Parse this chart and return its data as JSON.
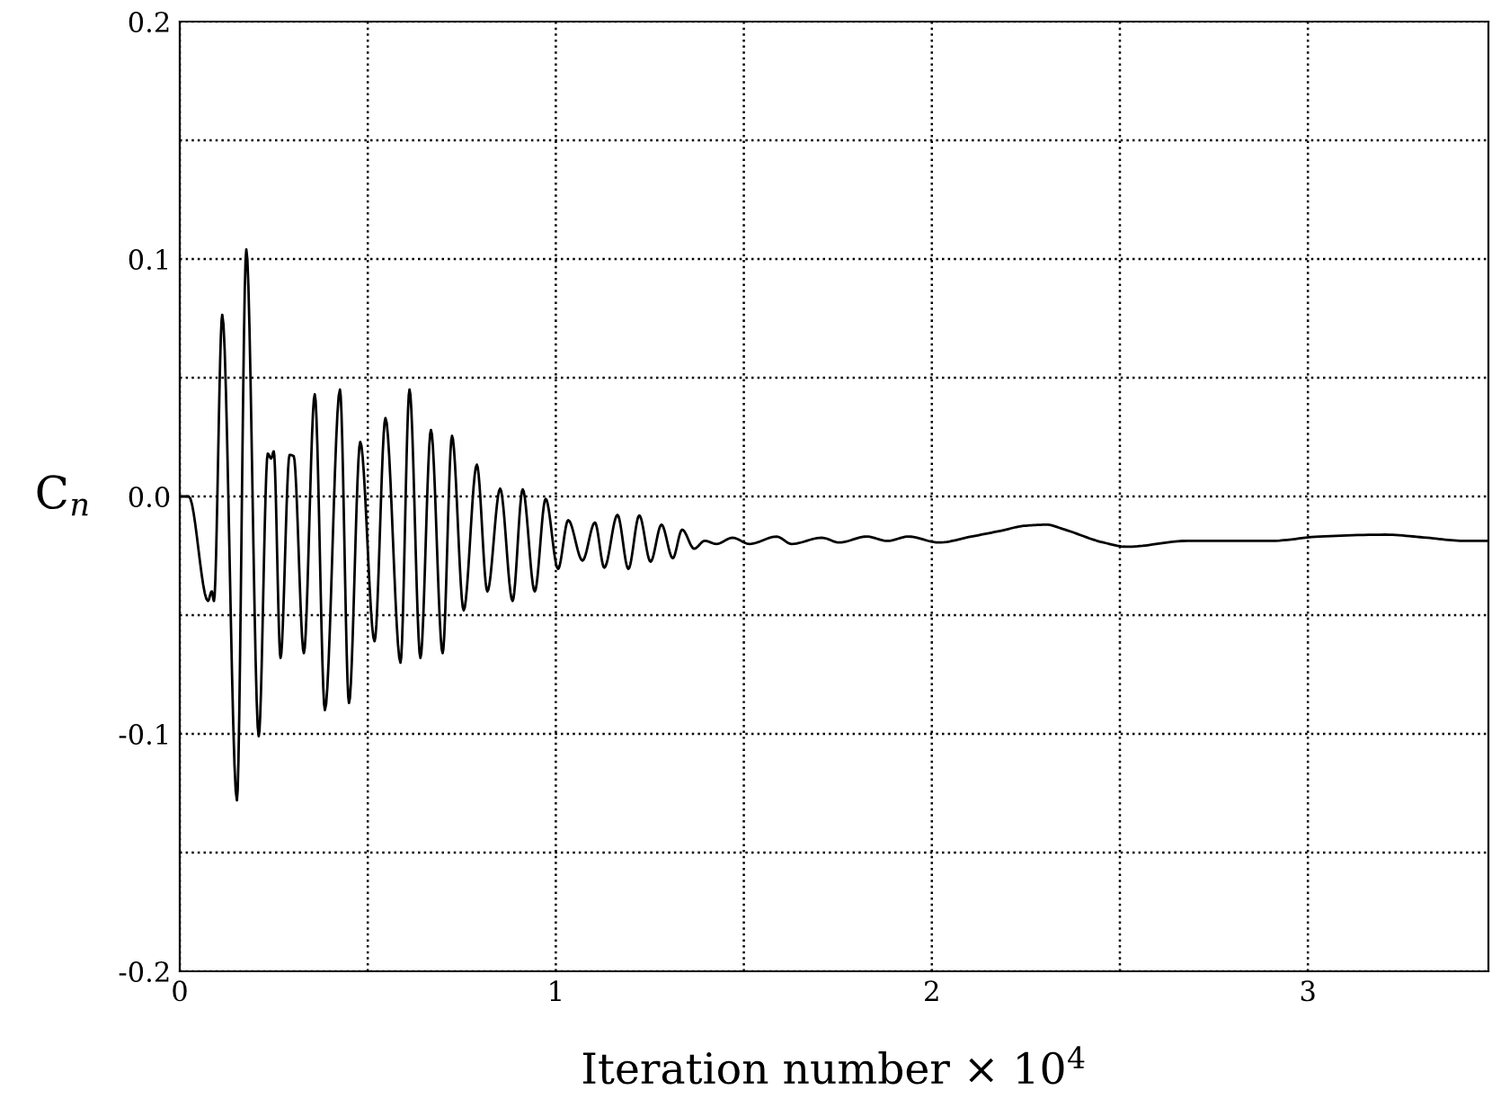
{
  "chart_data": {
    "type": "line",
    "xlabel": "Iteration number × 10$^{4}$",
    "ylabel": "C$_{n}$",
    "x": [
      0,
      0.024,
      0.075,
      0.085,
      0.091,
      0.113,
      0.152,
      0.177,
      0.21,
      0.234,
      0.243,
      0.25,
      0.268,
      0.292,
      0.303,
      0.33,
      0.359,
      0.386,
      0.426,
      0.45,
      0.48,
      0.518,
      0.547,
      0.587,
      0.611,
      0.64,
      0.668,
      0.699,
      0.724,
      0.755,
      0.79,
      0.818,
      0.852,
      0.885,
      0.912,
      0.944,
      0.973,
      1.006,
      1.033,
      1.071,
      1.104,
      1.129,
      1.164,
      1.193,
      1.222,
      1.252,
      1.281,
      1.311,
      1.336,
      1.368,
      1.396,
      1.427,
      1.47,
      1.515,
      1.587,
      1.627,
      1.707,
      1.754,
      1.826,
      1.882,
      1.938,
      2.018,
      2.105,
      2.185,
      2.245,
      2.305,
      2.352,
      2.456,
      2.52,
      2.68,
      2.903,
      3.03,
      3.206,
      3.317,
      3.413,
      3.48
    ],
    "values": [
      0,
      0,
      -0.044,
      -0.04,
      -0.044,
      0.0765,
      -0.128,
      0.104,
      -0.101,
      0.018,
      0.016,
      0.019,
      -0.068,
      0.0175,
      0.017,
      -0.066,
      0.043,
      -0.09,
      0.045,
      -0.087,
      0.023,
      -0.061,
      0.033,
      -0.07,
      0.045,
      -0.068,
      0.028,
      -0.066,
      0.0255,
      -0.048,
      0.0134,
      -0.04,
      0.0033,
      -0.044,
      0.003,
      -0.04,
      -0.001,
      -0.0305,
      -0.01,
      -0.027,
      -0.011,
      -0.03,
      -0.0078,
      -0.0305,
      -0.008,
      -0.0275,
      -0.0119,
      -0.026,
      -0.014,
      -0.022,
      -0.0187,
      -0.02,
      -0.0174,
      -0.02,
      -0.0169,
      -0.02,
      -0.0174,
      -0.0194,
      -0.0169,
      -0.0187,
      -0.0169,
      -0.0194,
      -0.0169,
      -0.0144,
      -0.0124,
      -0.0119,
      -0.0139,
      -0.0194,
      -0.0212,
      -0.0187,
      -0.0187,
      -0.0169,
      -0.0161,
      -0.0174,
      -0.0187,
      -0.0187
    ],
    "color": "#000000",
    "line_style": "solid",
    "marker": "none",
    "grid": true,
    "legend": false,
    "xlim": [
      0,
      3.48
    ],
    "ylim": [
      -0.2,
      0.2
    ],
    "xticks": [
      0,
      {
        "value": 0.5,
        "label": null
      },
      1,
      {
        "value": 1.5,
        "label": null
      },
      2,
      {
        "value": 2.5,
        "label": null
      },
      3
    ],
    "yticks": [
      -0.2,
      {
        "value": -0.15,
        "label": null
      },
      -0.1,
      {
        "value": -0.05,
        "label": null
      },
      {
        "value": 0,
        "label": "0.0"
      },
      {
        "value": 0.05,
        "label": null
      },
      0.1,
      {
        "value": 0.15,
        "label": null
      },
      0.2
    ]
  }
}
